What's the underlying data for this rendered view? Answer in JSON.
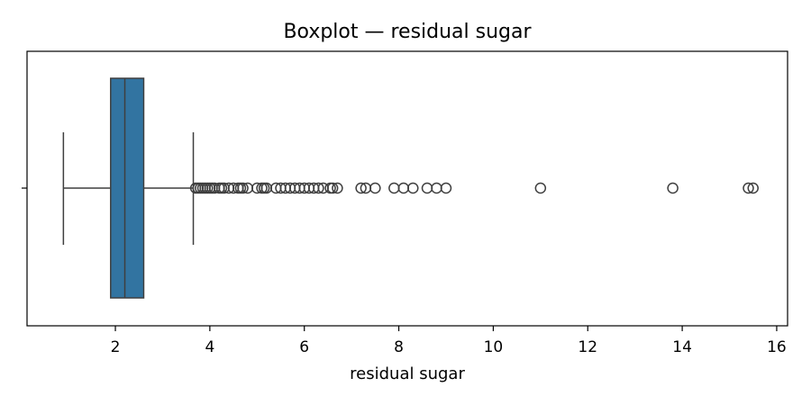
{
  "chart_data": {
    "type": "boxplot",
    "title": "Boxplot — residual sugar",
    "xlabel": "residual sugar",
    "ylabel": "",
    "xlim": [
      0.13,
      16.23
    ],
    "xticks": [
      2,
      4,
      6,
      8,
      10,
      12,
      14,
      16
    ],
    "grid": false,
    "box_color": "#3274a1",
    "line_color": "#3f3f3f",
    "box": {
      "whisker_low": 0.9,
      "q1": 1.9,
      "median": 2.2,
      "q3": 2.6,
      "whisker_high": 3.65
    },
    "outliers": [
      3.7,
      3.75,
      3.8,
      3.85,
      3.9,
      3.95,
      4.0,
      4.05,
      4.1,
      4.2,
      4.25,
      4.3,
      4.4,
      4.5,
      4.6,
      4.65,
      4.7,
      4.8,
      5.0,
      5.1,
      5.15,
      5.2,
      5.4,
      5.5,
      5.6,
      5.7,
      5.8,
      5.9,
      6.0,
      6.1,
      6.2,
      6.3,
      6.4,
      6.55,
      6.6,
      6.7,
      7.2,
      7.3,
      7.5,
      7.9,
      8.1,
      8.3,
      8.6,
      8.8,
      9.0,
      11.0,
      13.8,
      15.4,
      15.5
    ]
  }
}
